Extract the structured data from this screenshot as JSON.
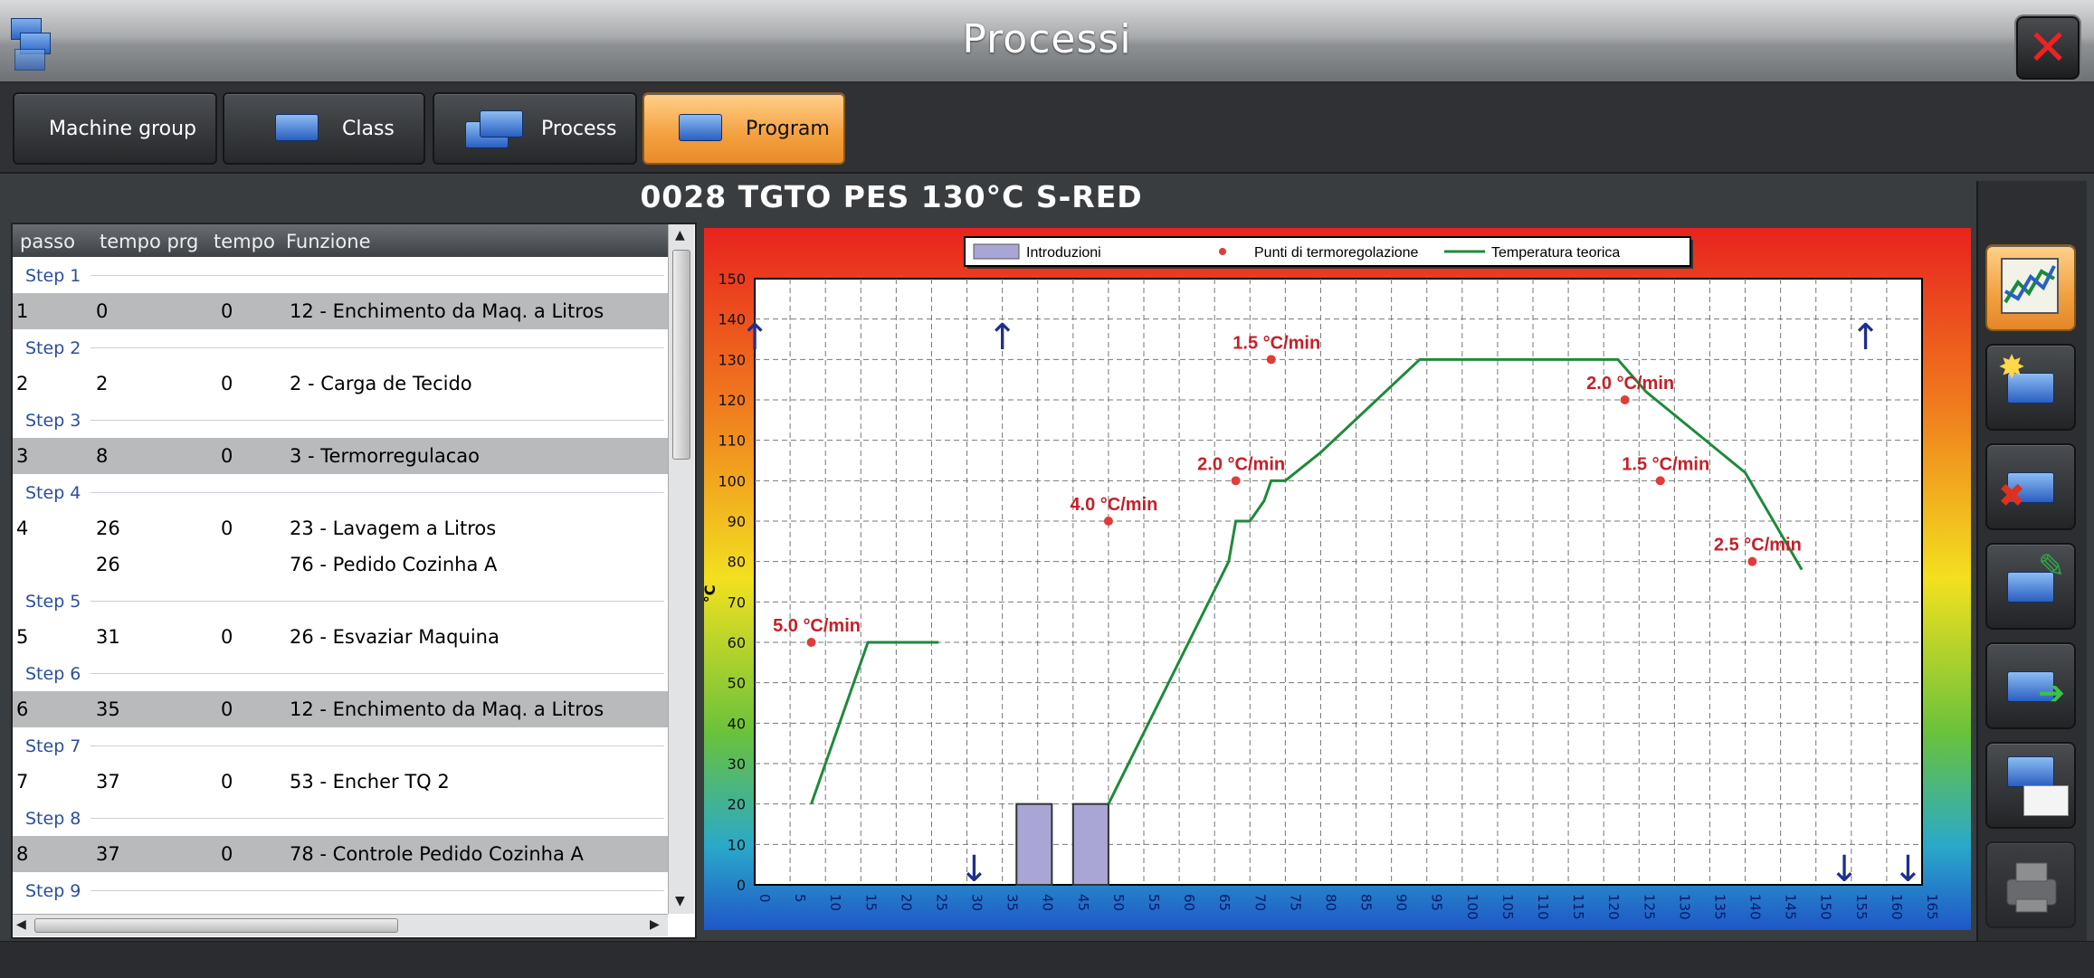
{
  "window": {
    "title": "Processi",
    "close_glyph": "✕"
  },
  "tabs": [
    {
      "label": "Machine group",
      "active": false
    },
    {
      "label": "Class",
      "active": false
    },
    {
      "label": "Process",
      "active": false
    },
    {
      "label": "Program",
      "active": true
    }
  ],
  "program": {
    "title": "0028 TGTO PES 130°C S-RED"
  },
  "table": {
    "headers": [
      "passo",
      "tempo prg",
      "tempo",
      "Funzione"
    ],
    "rows": [
      {
        "type": "step",
        "label": "Step 1"
      },
      {
        "type": "data",
        "passo": "1",
        "tempo_prg": "0",
        "tempo": "0",
        "funzione": "12 - Enchimento da Maq. a Litros",
        "shaded": true
      },
      {
        "type": "step",
        "label": "Step 2"
      },
      {
        "type": "data",
        "passo": "2",
        "tempo_prg": "2",
        "tempo": "0",
        "funzione": "2 - Carga de Tecido",
        "shaded": false
      },
      {
        "type": "step",
        "label": "Step 3"
      },
      {
        "type": "data",
        "passo": "3",
        "tempo_prg": "8",
        "tempo": "0",
        "funzione": "3 - Termorregulacao",
        "shaded": true
      },
      {
        "type": "step",
        "label": "Step 4"
      },
      {
        "type": "data",
        "passo": "4",
        "tempo_prg": "26",
        "tempo": "0",
        "funzione": "23 - Lavagem a Litros",
        "shaded": false
      },
      {
        "type": "data",
        "passo": "",
        "tempo_prg": "26",
        "tempo": "",
        "funzione": "76 - Pedido Cozinha A",
        "shaded": false
      },
      {
        "type": "step",
        "label": "Step 5"
      },
      {
        "type": "data",
        "passo": "5",
        "tempo_prg": "31",
        "tempo": "0",
        "funzione": "26 - Esvaziar Maquina",
        "shaded": false
      },
      {
        "type": "step",
        "label": "Step 6"
      },
      {
        "type": "data",
        "passo": "6",
        "tempo_prg": "35",
        "tempo": "0",
        "funzione": "12 - Enchimento da Maq. a Litros",
        "shaded": true
      },
      {
        "type": "step",
        "label": "Step 7"
      },
      {
        "type": "data",
        "passo": "7",
        "tempo_prg": "37",
        "tempo": "0",
        "funzione": "53 - Encher TQ 2",
        "shaded": false
      },
      {
        "type": "step",
        "label": "Step 8"
      },
      {
        "type": "data",
        "passo": "8",
        "tempo_prg": "37",
        "tempo": "0",
        "funzione": "78 - Controle Pedido Cozinha A",
        "shaded": true
      },
      {
        "type": "step",
        "label": "Step 9"
      }
    ]
  },
  "scroll_arrows": {
    "up": "▲",
    "down": "▼",
    "left": "◀",
    "right": "▶"
  },
  "sidebar_buttons": [
    {
      "name": "chart-view-button",
      "icon": "chart-icon",
      "active": true
    },
    {
      "name": "new-button",
      "icon": "new-icon",
      "active": false
    },
    {
      "name": "delete-button",
      "icon": "delete-icon",
      "active": false
    },
    {
      "name": "edit-button",
      "icon": "edit-icon",
      "active": false
    },
    {
      "name": "export-button",
      "icon": "export-icon",
      "active": false
    },
    {
      "name": "copy-button",
      "icon": "copy-icon",
      "active": false
    },
    {
      "name": "print-button",
      "icon": "print-icon",
      "active": false
    }
  ],
  "chart_data": {
    "type": "line",
    "title": "",
    "xlabel": "",
    "ylabel": "°C",
    "xlim": [
      0,
      165
    ],
    "ylim": [
      0,
      150
    ],
    "xticks": [
      0,
      5,
      10,
      15,
      20,
      25,
      30,
      35,
      40,
      45,
      50,
      55,
      60,
      65,
      70,
      75,
      80,
      85,
      90,
      95,
      100,
      105,
      110,
      115,
      120,
      125,
      130,
      135,
      140,
      145,
      150,
      155,
      160,
      165
    ],
    "yticks": [
      0,
      10,
      20,
      30,
      40,
      50,
      60,
      70,
      80,
      90,
      100,
      110,
      120,
      130,
      140,
      150
    ],
    "grid": true,
    "legend_position": "top-center",
    "legend": [
      {
        "label": "Introduzioni",
        "kind": "bar",
        "color": "#a9a6d6"
      },
      {
        "label": "Punti di termoregolazione",
        "kind": "point",
        "color": "#e23b3b"
      },
      {
        "label": "Temperatura teorica",
        "kind": "line",
        "color": "#1f8a3a"
      }
    ],
    "series": [
      {
        "name": "Temperatura teorica",
        "segments": [
          [
            [
              8,
              20
            ],
            [
              16,
              60
            ],
            [
              26,
              60
            ]
          ],
          [
            [
              50,
              20
            ],
            [
              67,
              80
            ],
            [
              68,
              90
            ],
            [
              70,
              90
            ],
            [
              72,
              95
            ],
            [
              73,
              100
            ],
            [
              75,
              100
            ],
            [
              80,
              107
            ],
            [
              94,
              130
            ],
            [
              122,
              130
            ],
            [
              126,
              122
            ],
            [
              140,
              102
            ],
            [
              148,
              78
            ]
          ]
        ]
      },
      {
        "name": "Punti di termoregolazione",
        "points": [
          {
            "x": 8,
            "y": 60,
            "label": "5.0 °C/min"
          },
          {
            "x": 50,
            "y": 90,
            "label": "4.0 °C/min"
          },
          {
            "x": 68,
            "y": 100,
            "label": "2.0 °C/min"
          },
          {
            "x": 73,
            "y": 130,
            "label": "1.5 °C/min"
          },
          {
            "x": 123,
            "y": 120,
            "label": "2.0 °C/min"
          },
          {
            "x": 128,
            "y": 100,
            "label": "1.5 °C/min"
          },
          {
            "x": 141,
            "y": 80,
            "label": "2.5 °C/min"
          }
        ]
      },
      {
        "name": "Introduzioni",
        "bars": [
          {
            "x0": 37,
            "x1": 42,
            "y": 20
          },
          {
            "x0": 45,
            "x1": 50,
            "y": 20
          }
        ]
      }
    ],
    "markers": {
      "up_arrows": [
        0,
        35,
        157
      ],
      "down_arrows": [
        31,
        154,
        163
      ],
      "up_glyph": "↑",
      "down_glyph": "↓"
    }
  }
}
